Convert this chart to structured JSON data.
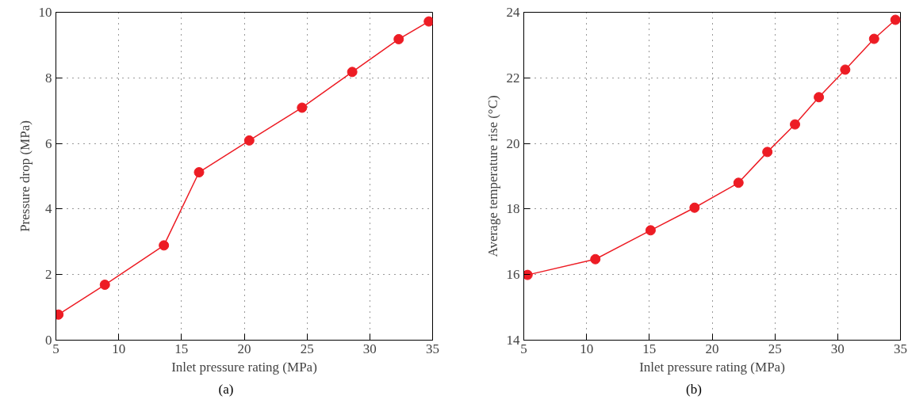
{
  "chart_data": [
    {
      "type": "line",
      "xlabel": "Inlet pressure rating (MPa)",
      "ylabel": "Pressure drop (MPa)",
      "annotations": [
        "(a)"
      ],
      "x": [
        5.2,
        8.9,
        13.6,
        16.4,
        20.4,
        24.6,
        28.6,
        32.3,
        34.7
      ],
      "series": [
        {
          "color": "#ed1c24",
          "values": [
            0.78,
            1.69,
            2.89,
            5.12,
            6.09,
            7.09,
            8.18,
            9.18,
            9.72
          ]
        }
      ],
      "xlim": [
        5,
        35
      ],
      "xticks": [
        5,
        10,
        15,
        20,
        25,
        30,
        35
      ],
      "ylim": [
        0,
        10
      ],
      "yticks": [
        0,
        2,
        4,
        6,
        8,
        10
      ],
      "grid": true,
      "marker": "circle",
      "line_style": "solid"
    },
    {
      "type": "line",
      "xlabel": "Inlet pressure rating (MPa)",
      "ylabel": "Average temperature rise (°C)",
      "annotations": [
        "(b)"
      ],
      "x": [
        5.3,
        10.7,
        15.1,
        18.6,
        22.1,
        24.4,
        26.6,
        28.5,
        30.6,
        32.9,
        34.6
      ],
      "series": [
        {
          "color": "#ed1c24",
          "values": [
            15.99,
            16.47,
            17.35,
            18.04,
            18.8,
            19.74,
            20.58,
            21.41,
            22.25,
            23.19,
            23.77
          ]
        }
      ],
      "xlim": [
        5,
        35
      ],
      "xticks": [
        5,
        10,
        15,
        20,
        25,
        30,
        35
      ],
      "ylim": [
        14,
        24
      ],
      "yticks": [
        14,
        16,
        18,
        20,
        22,
        24
      ],
      "grid": true,
      "marker": "circle",
      "line_style": "solid"
    }
  ]
}
